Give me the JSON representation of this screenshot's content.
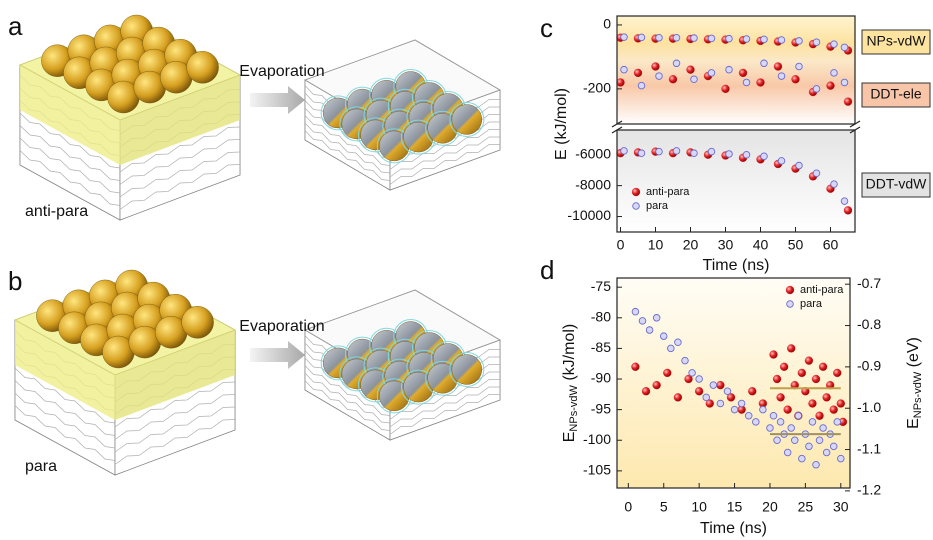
{
  "figure": {
    "panels": [
      {
        "label": "a",
        "arrow_text": "Evaporation",
        "caption": "anti-para"
      },
      {
        "label": "b",
        "arrow_text": "Evaporation",
        "caption": "para"
      }
    ]
  },
  "chart_data": [
    {
      "type": "broken_scatter",
      "panel_label": "c",
      "xlabel": "Time (ns)",
      "ylabel": "E (kJ/mol)",
      "xlim": [
        -1,
        67
      ],
      "xticks": [
        0,
        10,
        20,
        30,
        40,
        50,
        60
      ],
      "y_segments": [
        {
          "ylim": [
            -310,
            28
          ],
          "yticks": [
            0,
            -200
          ]
        },
        {
          "ylim": [
            -11000,
            -4400
          ],
          "yticks": [
            -6000,
            -8000,
            -10000
          ]
        }
      ],
      "annotations": [
        {
          "text": "NPs-vdW",
          "color": "#fce39f"
        },
        {
          "text": "DDT-ele",
          "color": "#f8c5a8"
        },
        {
          "text": "DDT-vdW",
          "color": "#e3e3e3"
        }
      ],
      "legend": "lower left",
      "series": [
        {
          "name": "anti-para",
          "color": "#d9202a",
          "marker": "sphere",
          "x": [
            0,
            5,
            10,
            15,
            20,
            25,
            30,
            35,
            40,
            45,
            50,
            55,
            60,
            65,
            0,
            5,
            10,
            15,
            20,
            25,
            30,
            35,
            40,
            45,
            50,
            55,
            60,
            65,
            0,
            5,
            10,
            15,
            20,
            25,
            30,
            35,
            40,
            45,
            50,
            55,
            60,
            65
          ],
          "values": [
            -40,
            -42,
            -43,
            -43,
            -44,
            -45,
            -46,
            -48,
            -50,
            -52,
            -55,
            -60,
            -68,
            -80,
            -180,
            -150,
            -130,
            -170,
            -140,
            -160,
            -200,
            -150,
            -180,
            -130,
            -170,
            -210,
            -190,
            -240,
            -5900,
            -5850,
            -5800,
            -5900,
            -5850,
            -6000,
            -6050,
            -6200,
            -6300,
            -6600,
            -6900,
            -7400,
            -8200,
            -9600
          ]
        },
        {
          "name": "para",
          "color": "#6a6ad0",
          "marker": "open",
          "x": [
            1,
            6,
            11,
            16,
            21,
            26,
            31,
            36,
            41,
            46,
            51,
            56,
            61,
            64,
            1,
            6,
            11,
            16,
            21,
            26,
            31,
            36,
            41,
            46,
            51,
            56,
            61,
            64,
            1,
            6,
            11,
            16,
            21,
            26,
            31,
            36,
            41,
            46,
            51,
            56,
            61,
            64
          ],
          "values": [
            -38,
            -39,
            -40,
            -40,
            -41,
            -42,
            -43,
            -44,
            -45,
            -47,
            -50,
            -54,
            -60,
            -70,
            -140,
            -190,
            -160,
            -120,
            -170,
            -150,
            -140,
            -180,
            -120,
            -160,
            -130,
            -200,
            -150,
            -180,
            -5750,
            -5900,
            -5800,
            -5750,
            -5900,
            -5800,
            -5950,
            -6000,
            -6100,
            -6400,
            -6700,
            -7200,
            -7900,
            -9000
          ]
        }
      ]
    },
    {
      "type": "dual_scatter",
      "panel_label": "d",
      "xlabel": "Time (ns)",
      "ylabel": {
        "main": "E",
        "sub": "NPs-vdW",
        "rest": " (kJ/mol)"
      },
      "y2label": {
        "main": "E",
        "sub": "NPs-vdW",
        "rest": " (eV)"
      },
      "xlim": [
        -1.6,
        31.3
      ],
      "xticks": [
        0,
        5,
        10,
        15,
        20,
        25,
        30
      ],
      "ylim": [
        -107.8,
        -73.5
      ],
      "yticks": [
        -75,
        -80,
        -85,
        -90,
        -95,
        -100,
        -105
      ],
      "y2lim": [
        -1.193,
        -0.685
      ],
      "y2ticks": [
        -0.7,
        -0.8,
        -0.9,
        {
          "value": -1,
          "label": "-1.0"
        },
        -1.1,
        -1.2
      ],
      "legend": "upper right",
      "reference_lines": [
        {
          "value": -91.5,
          "x": [
            20,
            30
          ],
          "color": "#c0a048"
        },
        {
          "value": -99,
          "x": [
            20,
            30
          ],
          "color": "#a09060"
        }
      ],
      "series": [
        {
          "name": "anti-para",
          "color": "#d9202a",
          "marker": "sphere",
          "x": [
            1,
            2.5,
            4,
            5.5,
            7,
            8.5,
            10,
            11.5,
            13,
            14.5,
            16,
            17.5,
            19,
            20.5,
            21,
            21.5,
            22,
            22.5,
            23,
            23.5,
            24,
            24.5,
            25,
            25.5,
            26,
            26.5,
            27,
            27.5,
            28,
            28.5,
            29,
            29.5,
            30,
            30.3
          ],
          "values": [
            -88,
            -92,
            -91,
            -89,
            -93,
            -90,
            -92,
            -94,
            -91,
            -93,
            -95,
            -92,
            -94,
            -86,
            -90,
            -93,
            -88,
            -95,
            -85,
            -91,
            -96,
            -89,
            -92,
            -87,
            -94,
            -90,
            -96,
            -88,
            -93,
            -91,
            -95,
            -89,
            -94,
            -97
          ]
        },
        {
          "name": "para",
          "color": "#6a6ad0",
          "marker": "open",
          "x": [
            1,
            2,
            3,
            4,
            5,
            6,
            7,
            8,
            9,
            10,
            11,
            12,
            13,
            14,
            15,
            16,
            17,
            18,
            19,
            20,
            20.5,
            21,
            21.5,
            22,
            22.5,
            23,
            23.5,
            24,
            24.5,
            25,
            25.5,
            26,
            26.5,
            27,
            27.5,
            28,
            28.5,
            29,
            29.5,
            30
          ],
          "values": [
            -79,
            -80.5,
            -82,
            -80,
            -83,
            -85,
            -84,
            -87,
            -89,
            -90,
            -93,
            -91,
            -94,
            -92,
            -95,
            -94,
            -96,
            -97,
            -95,
            -98,
            -96,
            -100,
            -97,
            -99,
            -102,
            -98,
            -100,
            -96,
            -103,
            -99,
            -101,
            -97,
            -104,
            -100,
            -98,
            -102,
            -99,
            -101,
            -97,
            -103
          ]
        }
      ]
    }
  ]
}
